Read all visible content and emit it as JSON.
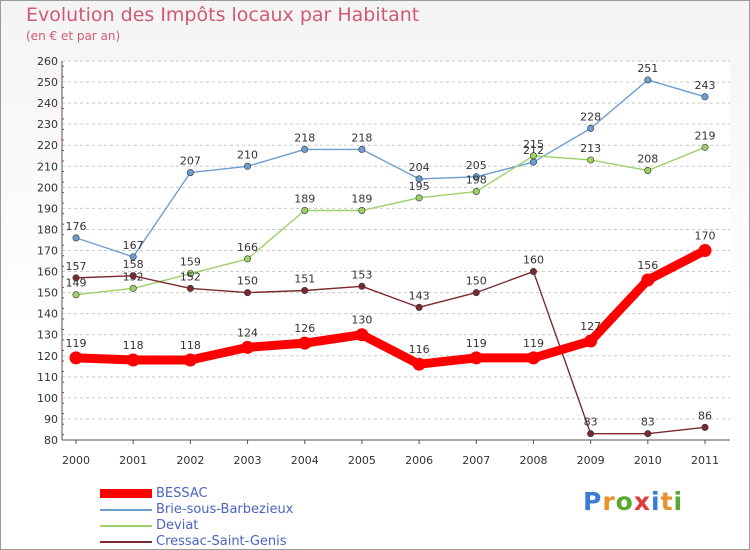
{
  "title": "Evolution des Impôts locaux par Habitant",
  "subtitle": "(en € et par an)",
  "brand": {
    "text": "Proxiti",
    "colors": [
      "#3a7bd5",
      "#e8912a",
      "#58a92f",
      "#e03c3c",
      "#3a7bd5",
      "#e8912a",
      "#58a92f"
    ]
  },
  "chart_data": {
    "type": "line",
    "title": "Evolution des Impôts locaux par Habitant",
    "subtitle": "(en € et par an)",
    "xlabel": "",
    "ylabel": "",
    "ylim": [
      80,
      260
    ],
    "ytick_step": 10,
    "grid": "horizontal-dashed",
    "legend_position": "bottom-left",
    "categories": [
      "2000",
      "2001",
      "2002",
      "2003",
      "2004",
      "2005",
      "2006",
      "2007",
      "2008",
      "2009",
      "2010",
      "2011"
    ],
    "series": [
      {
        "name": "Brie-sous-Barbezieux",
        "color": "#6e9ecf",
        "values": [
          176,
          167,
          207,
          210,
          218,
          218,
          204,
          205,
          212,
          228,
          251,
          243
        ],
        "labels": [
          "176",
          "167",
          "207",
          "210",
          "218",
          "218",
          "204",
          "205",
          "212",
          "228",
          "251",
          "243"
        ]
      },
      {
        "name": "Deviat",
        "color": "#9dd167",
        "values": [
          149,
          152,
          159,
          166,
          189,
          189,
          195,
          198,
          215,
          213,
          208,
          219
        ],
        "labels": [
          "149",
          "152",
          "159",
          "166",
          "189",
          "189",
          "195",
          "198",
          "215",
          "213",
          "208",
          "219"
        ]
      },
      {
        "name": "Cressac-Saint-Genis",
        "color": "#7a2a30",
        "values": [
          157,
          158,
          152,
          150,
          151,
          153,
          143,
          150,
          160,
          83,
          83,
          86
        ],
        "labels": [
          "157",
          "158",
          "152",
          "150",
          "151",
          "153",
          "143",
          "150",
          "160",
          "83",
          "83",
          "86"
        ]
      },
      {
        "name": "BESSAC",
        "color": "#ff0000",
        "values": [
          119,
          118,
          118,
          124,
          126,
          130,
          116,
          119,
          119,
          127,
          156,
          170
        ],
        "labels": [
          "119",
          "118",
          "118",
          "124",
          "126",
          "130",
          "116",
          "119",
          "119",
          "127",
          "156",
          "170"
        ]
      }
    ],
    "legend_order": [
      "BESSAC",
      "Brie-sous-Barbezieux",
      "Deviat",
      "Cressac-Saint-Genis"
    ]
  }
}
